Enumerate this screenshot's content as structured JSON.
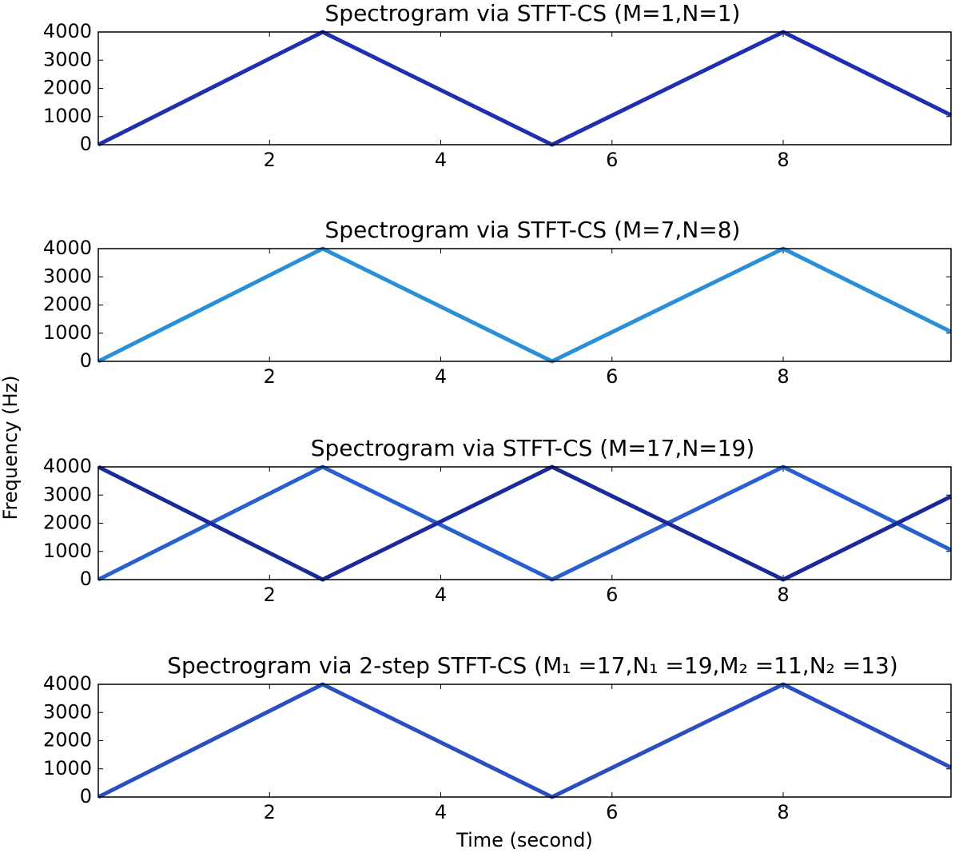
{
  "chart_data": [
    {
      "type": "line",
      "title": "Spectrogram via STFT-CS (M=1,N=1)",
      "x": [
        0,
        2.62,
        5.3,
        8.0,
        9.96
      ],
      "series": [
        {
          "color": "#1f2fb0",
          "values": [
            0,
            4000,
            0,
            4000,
            1050
          ]
        }
      ],
      "xlim": [
        0,
        9.96
      ],
      "ylim": [
        0,
        4000
      ],
      "xticks": [
        2,
        4,
        6,
        8
      ],
      "yticks": [
        0,
        1000,
        2000,
        3000,
        4000
      ]
    },
    {
      "type": "line",
      "title": "Spectrogram via STFT-CS (M=7,N=8)",
      "x": [
        0,
        2.62,
        5.3,
        8.0,
        9.96
      ],
      "series": [
        {
          "color": "#2a8fd6",
          "values": [
            0,
            4000,
            0,
            4000,
            1050
          ]
        }
      ],
      "xlim": [
        0,
        9.96
      ],
      "ylim": [
        0,
        4000
      ],
      "xticks": [
        2,
        4,
        6,
        8
      ],
      "yticks": [
        0,
        1000,
        2000,
        3000,
        4000
      ]
    },
    {
      "type": "line",
      "title": "Spectrogram via STFT-CS (M=17,N=19)",
      "x": [
        0,
        2.62,
        5.3,
        8.0,
        9.96
      ],
      "series": [
        {
          "color": "#2a5fd0",
          "values": [
            0,
            4000,
            0,
            4000,
            1050
          ]
        },
        {
          "color": "#1a2a9a",
          "values": [
            4000,
            0,
            4000,
            0,
            2950
          ]
        }
      ],
      "xlim": [
        0,
        9.96
      ],
      "ylim": [
        0,
        4000
      ],
      "xticks": [
        2,
        4,
        6,
        8
      ],
      "yticks": [
        0,
        1000,
        2000,
        3000,
        4000
      ]
    },
    {
      "type": "line",
      "title": "Spectrogram via 2-step STFT-CS (M₁ =17,N₁ =19,M₂ =11,N₂ =13)",
      "xlabel": "Time (second)",
      "x": [
        0,
        2.62,
        5.3,
        8.0,
        9.96
      ],
      "series": [
        {
          "color": "#2a4fc0",
          "values": [
            0,
            4000,
            0,
            4000,
            1050
          ]
        }
      ],
      "xlim": [
        0,
        9.96
      ],
      "ylim": [
        0,
        4000
      ],
      "xticks": [
        2,
        4,
        6,
        8
      ],
      "yticks": [
        0,
        1000,
        2000,
        3000,
        4000
      ]
    }
  ],
  "ylabel": "Frequency (Hz)"
}
